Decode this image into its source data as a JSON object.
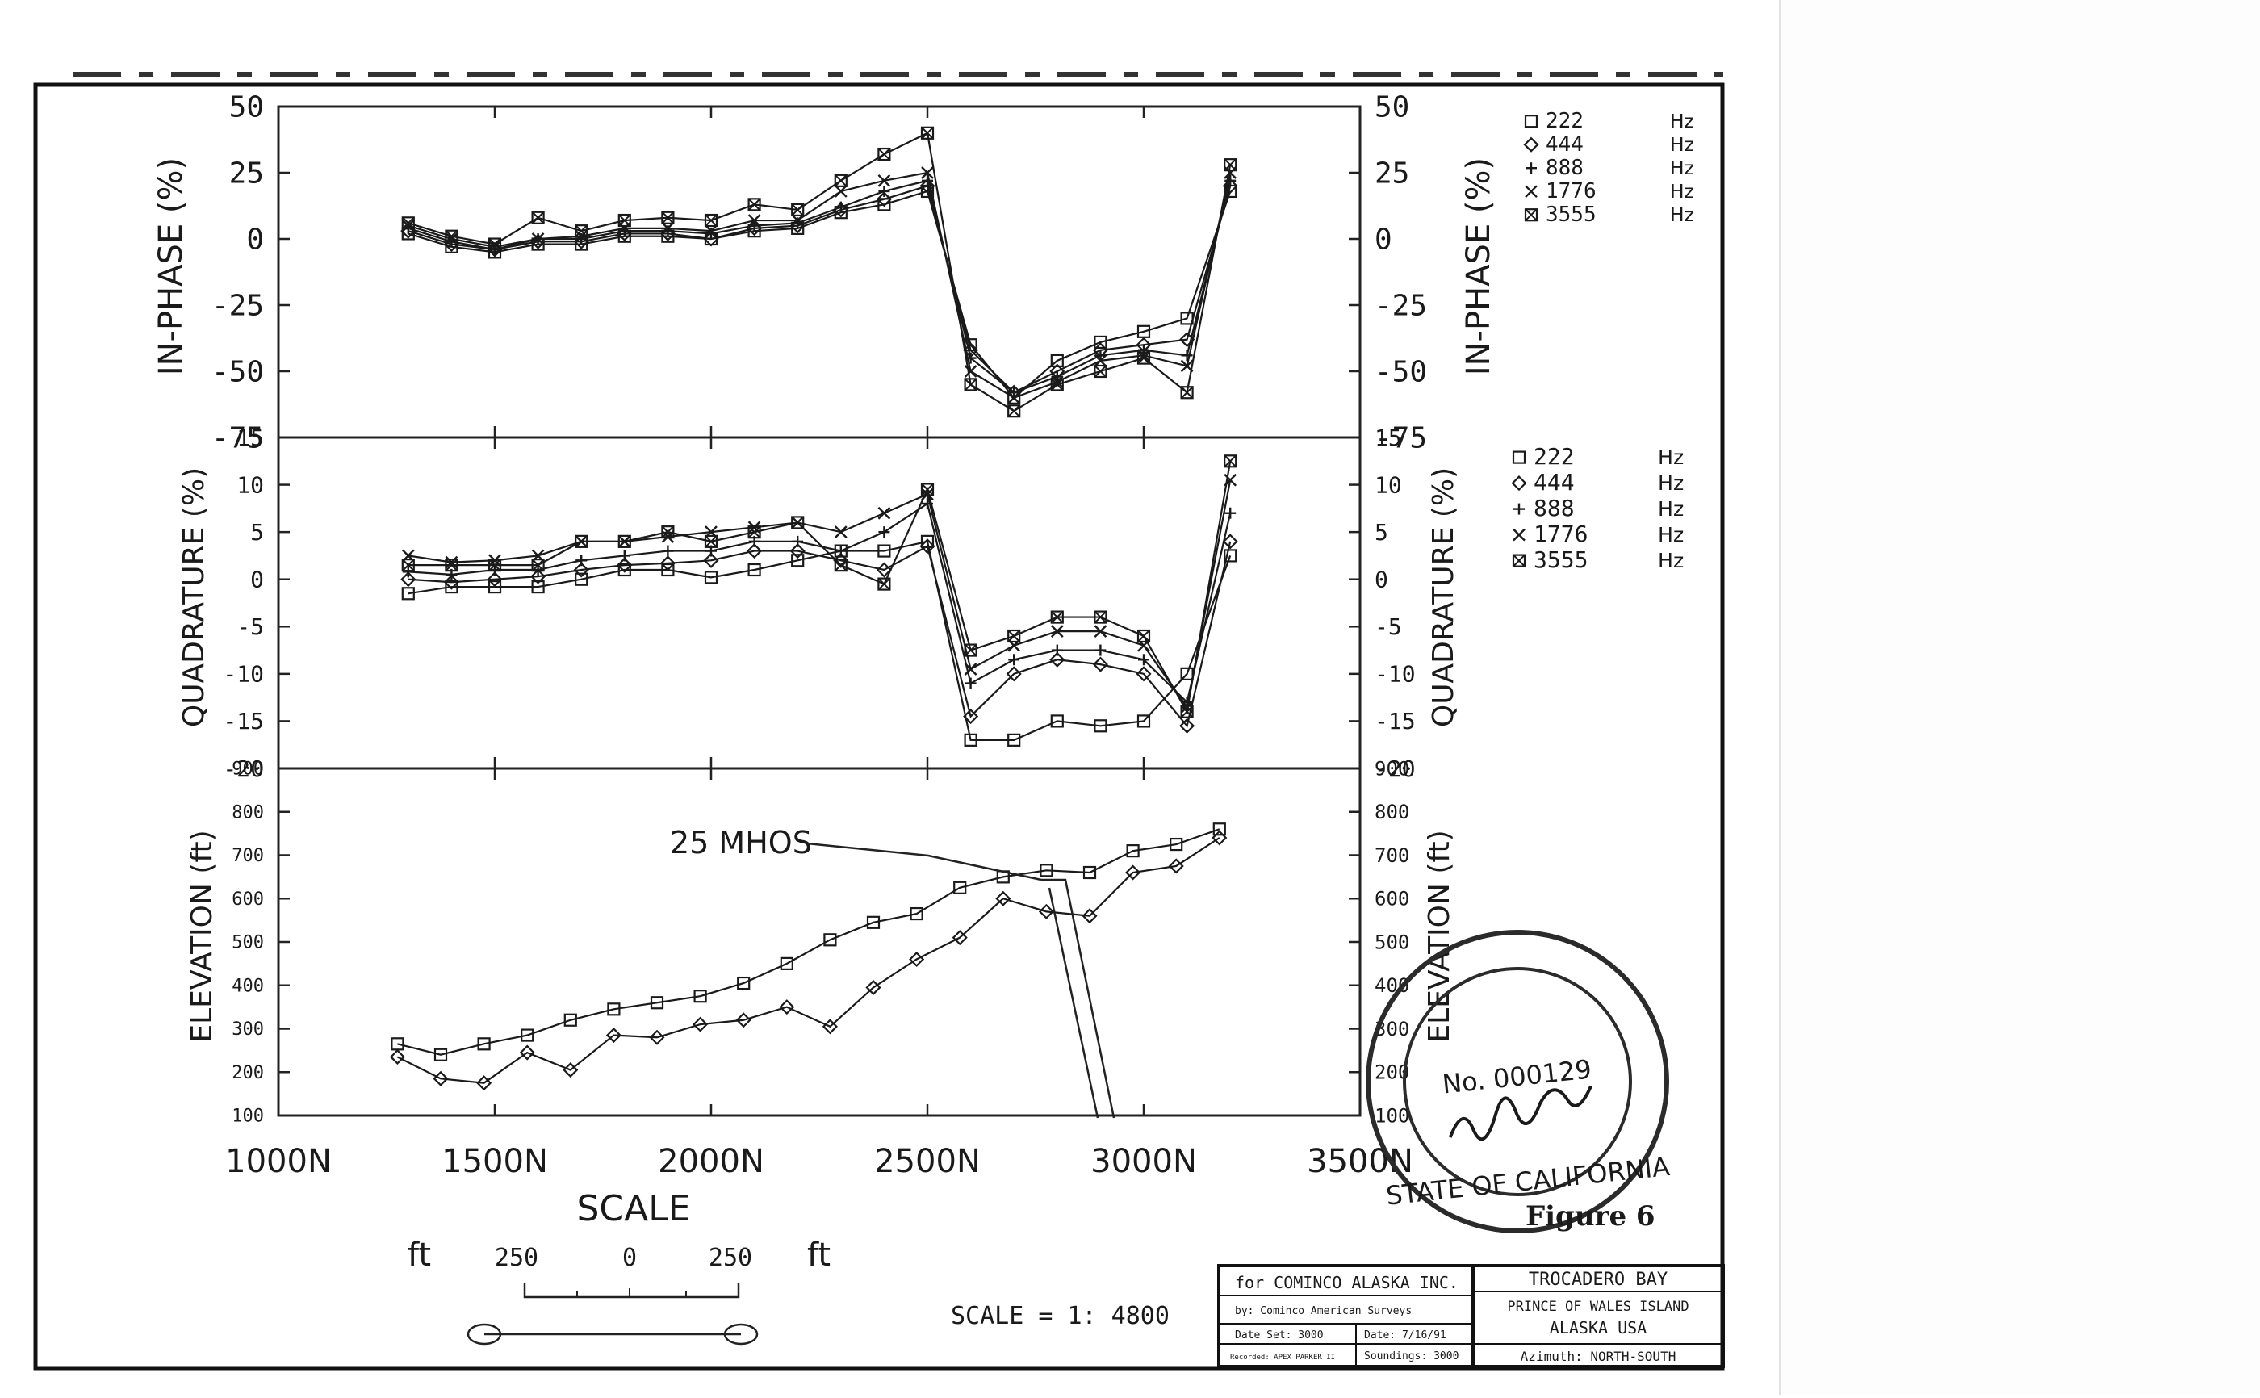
{
  "chart_data": [
    {
      "type": "line",
      "ylabel": "IN-PHASE (%)",
      "ylim": [
        -75,
        50
      ],
      "yticks": [
        "50",
        "25",
        "0",
        "-25",
        "-50",
        "-75"
      ],
      "yticks_right": [
        "50",
        "25",
        "0",
        "-25",
        "-50",
        "-75"
      ],
      "xlim": [
        1000,
        3500
      ],
      "x": [
        1300,
        1400,
        1500,
        1600,
        1700,
        1800,
        1900,
        2000,
        2100,
        2200,
        2300,
        2400,
        2500,
        2600,
        2700,
        2800,
        2900,
        3000,
        3100,
        3200
      ],
      "legend": [
        {
          "name": "222",
          "unit": "Hz",
          "marker": "square"
        },
        {
          "name": "444",
          "unit": "Hz",
          "marker": "diamond"
        },
        {
          "name": "888",
          "unit": "Hz",
          "marker": "plus"
        },
        {
          "name": "1776",
          "unit": "Hz",
          "marker": "cross"
        },
        {
          "name": "3555",
          "unit": "Hz",
          "marker": "xsquare"
        }
      ],
      "series": [
        {
          "marker": "square",
          "values": [
            2,
            -3,
            -5,
            -2,
            -2,
            1,
            1,
            0,
            3,
            4,
            10,
            13,
            18,
            -40,
            -60,
            -46,
            -39,
            -35,
            -30,
            18
          ]
        },
        {
          "marker": "diamond",
          "values": [
            3,
            -2,
            -4,
            -1,
            -1,
            2,
            2,
            0,
            4,
            5,
            11,
            15,
            20,
            -42,
            -58,
            -50,
            -42,
            -40,
            -38,
            20
          ]
        },
        {
          "marker": "plus",
          "values": [
            4,
            -1,
            -4,
            0,
            0,
            3,
            3,
            2,
            5,
            6,
            12,
            18,
            22,
            -45,
            -58,
            -52,
            -44,
            -42,
            -44,
            22
          ]
        },
        {
          "marker": "cross",
          "values": [
            5,
            0,
            -3,
            0,
            1,
            4,
            4,
            3,
            7,
            7,
            18,
            22,
            25,
            -50,
            -60,
            -54,
            -46,
            -44,
            -48,
            25
          ]
        },
        {
          "marker": "xsquare",
          "values": [
            6,
            1,
            -2,
            8,
            3,
            7,
            8,
            7,
            13,
            11,
            22,
            32,
            40,
            -55,
            -65,
            -55,
            -50,
            -45,
            -58,
            28
          ]
        }
      ]
    },
    {
      "type": "line",
      "ylabel": "QUADRATURE (%)",
      "ylim": [
        -20,
        15
      ],
      "yticks": [
        "15",
        "10",
        "5",
        "0",
        "-5",
        "-10",
        "-15",
        "-20"
      ],
      "yticks_right": [
        "15",
        "10",
        "5",
        "0",
        "-5",
        "-10",
        "-15",
        "-20"
      ],
      "xlim": [
        1000,
        3500
      ],
      "x": [
        1300,
        1400,
        1500,
        1600,
        1700,
        1800,
        1900,
        2000,
        2100,
        2200,
        2300,
        2400,
        2500,
        2600,
        2700,
        2800,
        2900,
        3000,
        3100,
        3200
      ],
      "legend": [
        {
          "name": "222",
          "unit": "Hz",
          "marker": "square"
        },
        {
          "name": "444",
          "unit": "Hz",
          "marker": "diamond"
        },
        {
          "name": "888",
          "unit": "Hz",
          "marker": "plus"
        },
        {
          "name": "1776",
          "unit": "Hz",
          "marker": "cross"
        },
        {
          "name": "3555",
          "unit": "Hz",
          "marker": "xsquare"
        }
      ],
      "series": [
        {
          "marker": "square",
          "values": [
            -1.5,
            -0.8,
            -0.8,
            -0.8,
            0,
            1,
            1,
            0.2,
            1,
            2,
            3,
            3,
            4,
            -17,
            -17,
            -15,
            -15.5,
            -15,
            -10,
            2.5
          ]
        },
        {
          "marker": "diamond",
          "values": [
            0,
            -0.3,
            0,
            0.3,
            1,
            1.5,
            1.7,
            2,
            3,
            3,
            2,
            1,
            3.5,
            -14.5,
            -10,
            -8.5,
            -9,
            -10,
            -15.5,
            4
          ]
        },
        {
          "marker": "plus",
          "values": [
            0.8,
            0.5,
            1,
            1,
            2,
            2.5,
            3,
            3,
            4,
            4,
            3,
            5,
            8,
            -11,
            -8.5,
            -7.5,
            -7.5,
            -8.5,
            -13,
            7
          ]
        },
        {
          "marker": "cross",
          "values": [
            2.5,
            1.8,
            2,
            2.5,
            4,
            4,
            4.5,
            5,
            5.5,
            6,
            5,
            7,
            9,
            -9.5,
            -7,
            -5.5,
            -5.5,
            -7,
            -13.5,
            10.5
          ]
        },
        {
          "marker": "xsquare",
          "values": [
            1.5,
            1.5,
            1.5,
            1.5,
            4,
            4,
            5,
            4,
            5,
            6,
            1.5,
            -0.5,
            9.5,
            -7.5,
            -6,
            -4,
            -4,
            -6,
            -14,
            12.5
          ]
        }
      ]
    },
    {
      "type": "line",
      "ylabel": "ELEVATION (ft)",
      "ylim": [
        100,
        900
      ],
      "yticks": [
        "900",
        "800",
        "700",
        "600",
        "500",
        "400",
        "300",
        "200",
        "100"
      ],
      "yticks_right": [
        "900",
        "800",
        "700",
        "600",
        "500",
        "400",
        "300",
        "200",
        "100"
      ],
      "xlim": [
        1000,
        3500
      ],
      "xticks": [
        "1000N",
        "1500N",
        "2000N",
        "2500N",
        "3000N",
        "3500N"
      ],
      "xlabel": "SCALE",
      "annotation": "25 MHOS",
      "series": [
        {
          "marker": "square",
          "x": [
            1275,
            1375,
            1475,
            1575,
            1675,
            1775,
            1875,
            1975,
            2075,
            2175,
            2275,
            2375,
            2475,
            2575,
            2675,
            2775,
            2875,
            2975,
            3075,
            3175
          ],
          "values": [
            265,
            240,
            265,
            285,
            320,
            345,
            360,
            375,
            405,
            450,
            505,
            545,
            565,
            625,
            650,
            665,
            660,
            710,
            725,
            760
          ]
        },
        {
          "marker": "diamond",
          "x": [
            1275,
            1375,
            1475,
            1575,
            1675,
            1775,
            1875,
            1975,
            2075,
            2175,
            2275,
            2375,
            2475,
            2575,
            2675,
            2775,
            2875,
            2975,
            3075,
            3175
          ],
          "values": [
            235,
            185,
            175,
            245,
            205,
            285,
            280,
            310,
            320,
            350,
            305,
            395,
            460,
            510,
            600,
            570,
            560,
            660,
            675,
            740
          ]
        }
      ]
    }
  ],
  "legend_hz": "Hz",
  "scale_bar": {
    "left_unit": "ft",
    "labels": [
      "250",
      "0",
      "250"
    ],
    "right_unit": "ft"
  },
  "scale_text": "SCALE = 1: 4800",
  "stamp": {
    "number": "No. 000129",
    "state": "STATE OF CALIFORNIA"
  },
  "figure_label": "Figure 6",
  "title_block": {
    "client": "for COMINCO ALASKA INC.",
    "by": "by: Cominco American Surveys",
    "date_set": "Date Set: 3000",
    "date": "Date: 7/16/91",
    "recorded": "Recorded: APEX PARKER II",
    "soundings": "Soundings: 3000",
    "location_title": "TROCADERO BAY",
    "location_line2": "PRINCE OF WALES ISLAND",
    "location_line3": "ALASKA USA",
    "azimuth": "Azimuth: NORTH-SOUTH"
  }
}
